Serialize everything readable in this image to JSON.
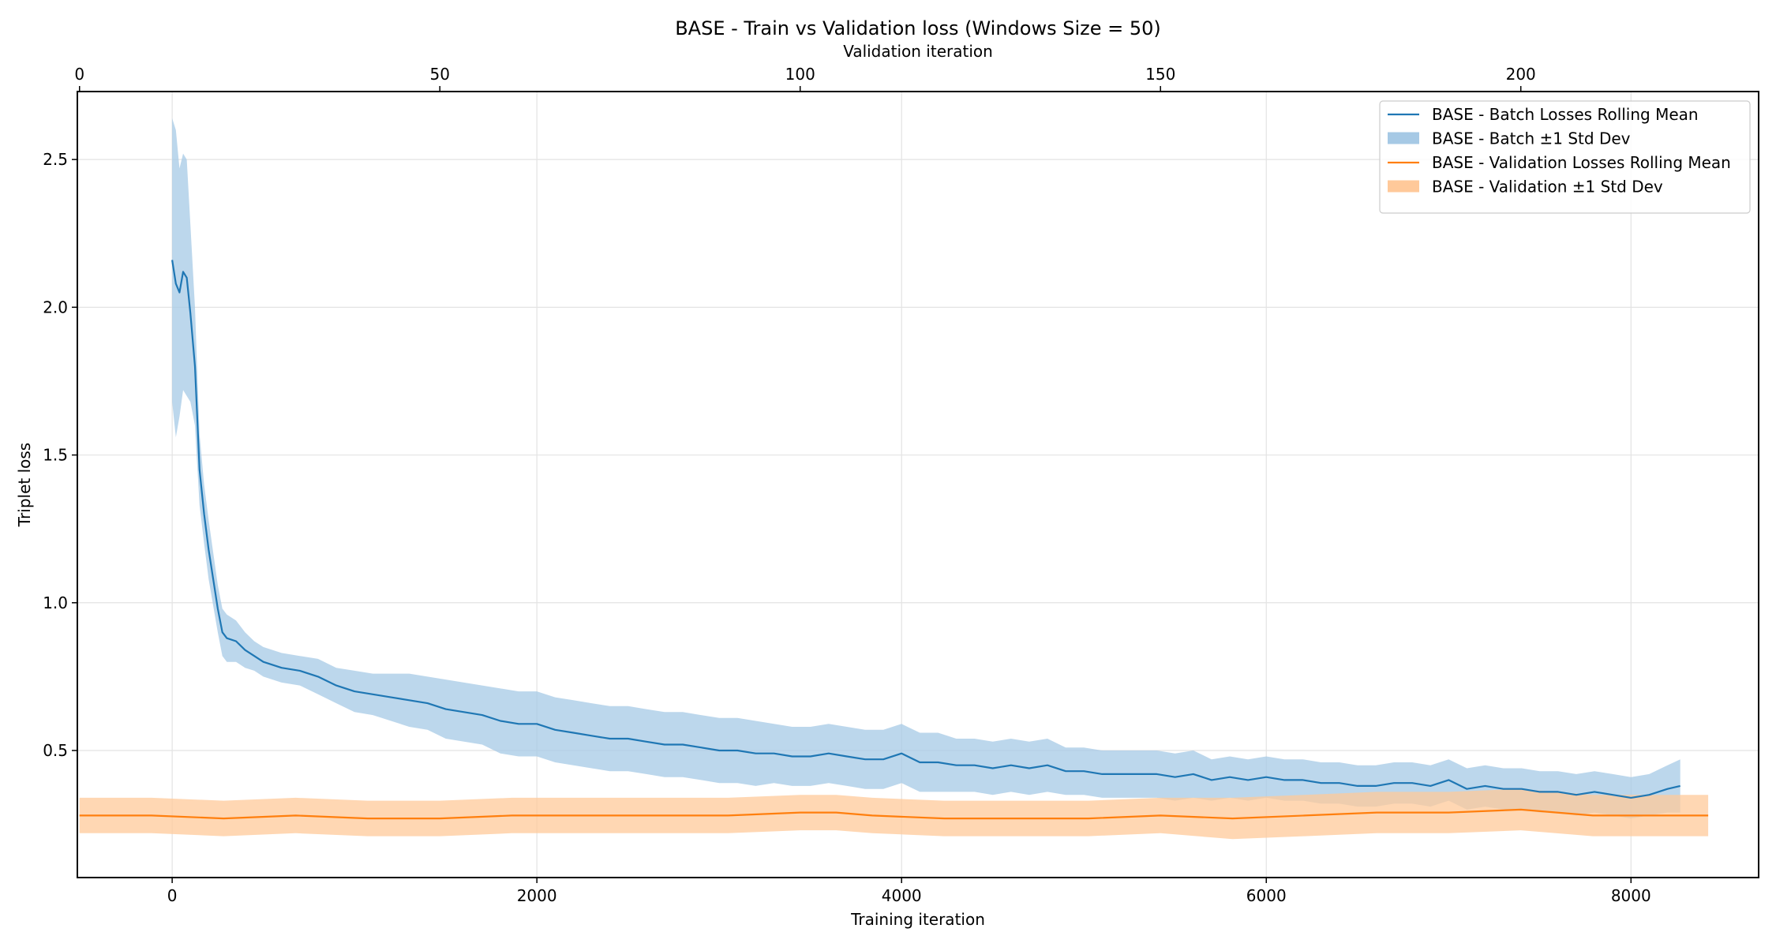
{
  "chart_data": {
    "type": "line",
    "title": "BASE - Train vs Validation loss (Windows Size = 50)",
    "xlabel": "Training iteration",
    "ylabel": "Triplet loss",
    "top_xlabel": "Validation iteration",
    "xlim": [
      -520,
      8700
    ],
    "ylim": [
      0.07,
      2.73
    ],
    "top_xlim": [
      -0.3,
      233
    ],
    "xticks": [
      0,
      2000,
      4000,
      6000,
      8000
    ],
    "yticks": [
      0.5,
      1.0,
      1.5,
      2.0,
      2.5
    ],
    "top_xticks": [
      0,
      50,
      100,
      150,
      200
    ],
    "grid": true,
    "legend_position": "top-right",
    "colors": {
      "batch": "#1f77b4",
      "batch_band": "#a6c9e5",
      "validation": "#ff7f0e",
      "validation_band": "#ffc99a"
    },
    "series": [
      {
        "name": "BASE - Batch Losses Rolling Mean",
        "axis": "bottom",
        "x": [
          0,
          20,
          40,
          60,
          80,
          100,
          125,
          150,
          175,
          200,
          225,
          250,
          275,
          300,
          350,
          400,
          450,
          500,
          600,
          700,
          800,
          900,
          1000,
          1100,
          1200,
          1300,
          1400,
          1500,
          1600,
          1700,
          1800,
          1900,
          2000,
          2100,
          2200,
          2300,
          2400,
          2500,
          2600,
          2700,
          2800,
          2900,
          3000,
          3100,
          3200,
          3300,
          3400,
          3500,
          3600,
          3700,
          3800,
          3900,
          4000,
          4100,
          4200,
          4300,
          4400,
          4500,
          4600,
          4700,
          4800,
          4900,
          5000,
          5100,
          5200,
          5300,
          5400,
          5500,
          5600,
          5700,
          5800,
          5900,
          6000,
          6100,
          6200,
          6300,
          6400,
          6500,
          6600,
          6700,
          6800,
          6900,
          7000,
          7100,
          7200,
          7300,
          7400,
          7500,
          7600,
          7700,
          7800,
          7900,
          8000,
          8100,
          8200,
          8270
        ],
        "values": [
          2.16,
          2.08,
          2.05,
          2.12,
          2.1,
          1.98,
          1.8,
          1.45,
          1.3,
          1.18,
          1.08,
          0.98,
          0.9,
          0.88,
          0.87,
          0.84,
          0.82,
          0.8,
          0.78,
          0.77,
          0.75,
          0.72,
          0.7,
          0.69,
          0.68,
          0.67,
          0.66,
          0.64,
          0.63,
          0.62,
          0.6,
          0.59,
          0.59,
          0.57,
          0.56,
          0.55,
          0.54,
          0.54,
          0.53,
          0.52,
          0.52,
          0.51,
          0.5,
          0.5,
          0.49,
          0.49,
          0.48,
          0.48,
          0.49,
          0.48,
          0.47,
          0.47,
          0.49,
          0.46,
          0.46,
          0.45,
          0.45,
          0.44,
          0.45,
          0.44,
          0.45,
          0.43,
          0.43,
          0.42,
          0.42,
          0.42,
          0.42,
          0.41,
          0.42,
          0.4,
          0.41,
          0.4,
          0.41,
          0.4,
          0.4,
          0.39,
          0.39,
          0.38,
          0.38,
          0.39,
          0.39,
          0.38,
          0.4,
          0.37,
          0.38,
          0.37,
          0.37,
          0.36,
          0.36,
          0.35,
          0.36,
          0.35,
          0.34,
          0.35,
          0.37,
          0.38
        ],
        "std": [
          0.48,
          0.52,
          0.42,
          0.4,
          0.4,
          0.3,
          0.2,
          0.12,
          0.1,
          0.1,
          0.09,
          0.08,
          0.08,
          0.08,
          0.07,
          0.06,
          0.05,
          0.05,
          0.05,
          0.05,
          0.06,
          0.06,
          0.07,
          0.07,
          0.08,
          0.09,
          0.09,
          0.1,
          0.1,
          0.1,
          0.11,
          0.11,
          0.11,
          0.11,
          0.11,
          0.11,
          0.11,
          0.11,
          0.11,
          0.11,
          0.11,
          0.11,
          0.11,
          0.11,
          0.11,
          0.1,
          0.1,
          0.1,
          0.1,
          0.1,
          0.1,
          0.1,
          0.1,
          0.1,
          0.1,
          0.09,
          0.09,
          0.09,
          0.09,
          0.09,
          0.09,
          0.08,
          0.08,
          0.08,
          0.08,
          0.08,
          0.08,
          0.08,
          0.08,
          0.07,
          0.07,
          0.07,
          0.07,
          0.07,
          0.07,
          0.07,
          0.07,
          0.07,
          0.07,
          0.07,
          0.07,
          0.07,
          0.07,
          0.07,
          0.07,
          0.07,
          0.07,
          0.07,
          0.07,
          0.07,
          0.07,
          0.07,
          0.07,
          0.07,
          0.08,
          0.09
        ]
      },
      {
        "name": "BASE - Validation Losses Rolling Mean",
        "axis": "top",
        "x": [
          0,
          10,
          20,
          30,
          40,
          45,
          50,
          60,
          65,
          70,
          80,
          90,
          100,
          105,
          110,
          120,
          130,
          140,
          150,
          160,
          170,
          180,
          190,
          200,
          210,
          220,
          226
        ],
        "values": [
          0.28,
          0.28,
          0.27,
          0.28,
          0.27,
          0.27,
          0.27,
          0.28,
          0.28,
          0.28,
          0.28,
          0.28,
          0.29,
          0.29,
          0.28,
          0.27,
          0.27,
          0.27,
          0.28,
          0.27,
          0.28,
          0.29,
          0.29,
          0.3,
          0.28,
          0.28,
          0.28
        ],
        "std": [
          0.06,
          0.06,
          0.06,
          0.06,
          0.06,
          0.06,
          0.06,
          0.06,
          0.06,
          0.06,
          0.06,
          0.06,
          0.06,
          0.06,
          0.06,
          0.06,
          0.06,
          0.06,
          0.06,
          0.07,
          0.07,
          0.07,
          0.07,
          0.07,
          0.07,
          0.07,
          0.07
        ]
      }
    ],
    "legend": [
      {
        "label": "BASE - Batch Losses Rolling Mean",
        "kind": "line",
        "color": "#1f77b4"
      },
      {
        "label": "BASE - Batch ±1 Std Dev",
        "kind": "band",
        "color": "#a6c9e5"
      },
      {
        "label": "BASE - Validation Losses Rolling Mean",
        "kind": "line",
        "color": "#ff7f0e"
      },
      {
        "label": "BASE - Validation ±1 Std Dev",
        "kind": "band",
        "color": "#ffc99a"
      }
    ]
  }
}
